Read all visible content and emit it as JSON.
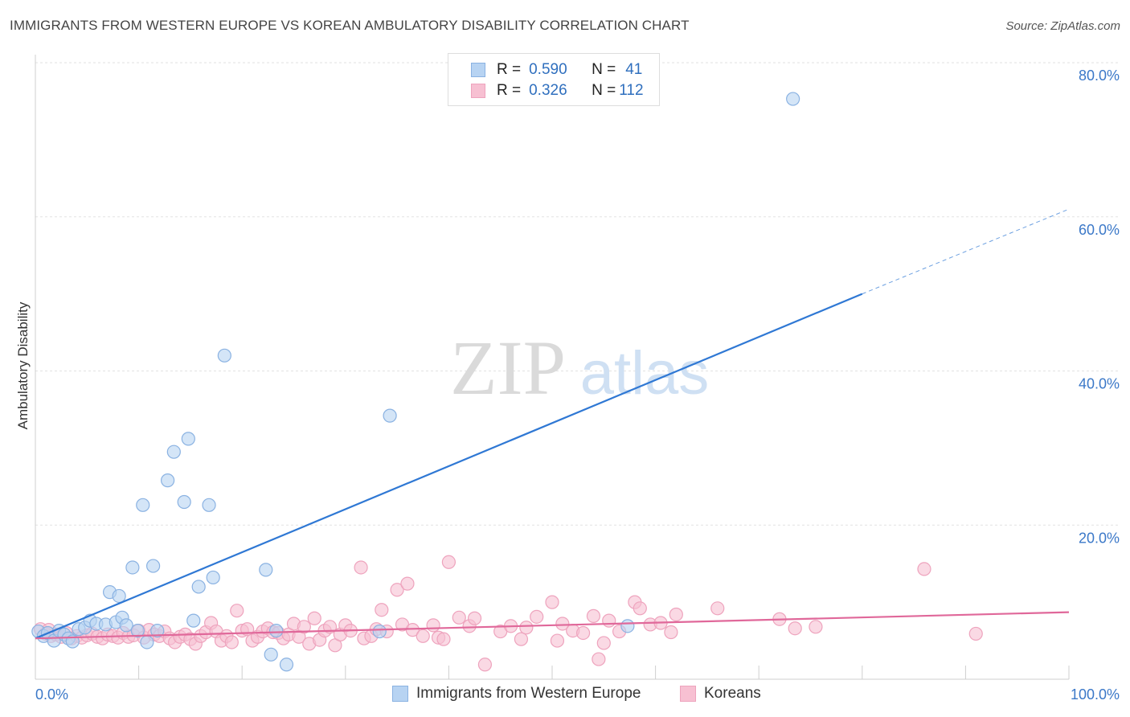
{
  "title": "IMMIGRANTS FROM WESTERN EUROPE VS KOREAN AMBULATORY DISABILITY CORRELATION CHART",
  "source": "Source: ZipAtlas.com",
  "watermark": {
    "zip": "ZIP",
    "atlas": "atlas"
  },
  "legend": {
    "rows": [
      {
        "r_label": "R =",
        "r_value": "0.590",
        "n_label": "N =",
        "n_value": "41"
      },
      {
        "r_label": "R =",
        "r_value": "0.326",
        "n_label": "N =",
        "n_value": "112"
      }
    ]
  },
  "colors": {
    "blue_fill": "#b7d3f2",
    "blue_stroke": "#8ab2e2",
    "blue_line": "#2f78d4",
    "pink_fill": "#f7c0d2",
    "pink_stroke": "#eea3bd",
    "pink_line": "#e0689a",
    "axis_label": "#3b78c8",
    "grid": "#e2e2e2"
  },
  "chart_data": {
    "type": "scatter",
    "title": "IMMIGRANTS FROM WESTERN EUROPE VS KOREAN AMBULATORY DISABILITY CORRELATION CHART",
    "xlabel": "",
    "ylabel": "Ambulatory Disability",
    "xlim": [
      0,
      100
    ],
    "ylim": [
      0,
      80
    ],
    "x_tick_labels": [
      "0.0%",
      "100.0%"
    ],
    "y_ticks": [
      20,
      40,
      60,
      80
    ],
    "y_tick_labels": [
      "20.0%",
      "40.0%",
      "60.0%",
      "80.0%"
    ],
    "grid": true,
    "series": [
      {
        "name": "Immigrants from Western Europe",
        "color": "blue",
        "R": 0.59,
        "N": 41,
        "trend": {
          "x0": 0,
          "y0": 5.3,
          "x1": 80,
          "y1": 50.0,
          "dash_to_x": 100,
          "dash_to_y": 61.0
        },
        "points": [
          [
            0.3,
            6.2
          ],
          [
            0.8,
            5.6
          ],
          [
            1.2,
            6.0
          ],
          [
            1.8,
            5.0
          ],
          [
            2.3,
            6.3
          ],
          [
            2.8,
            5.8
          ],
          [
            3.2,
            5.3
          ],
          [
            3.6,
            4.9
          ],
          [
            4.2,
            6.5
          ],
          [
            4.8,
            6.7
          ],
          [
            5.3,
            7.6
          ],
          [
            5.9,
            7.2
          ],
          [
            6.8,
            7.1
          ],
          [
            7.2,
            11.3
          ],
          [
            7.8,
            7.4
          ],
          [
            8.1,
            10.8
          ],
          [
            8.4,
            8.0
          ],
          [
            8.8,
            7.0
          ],
          [
            9.4,
            14.5
          ],
          [
            9.9,
            6.3
          ],
          [
            10.4,
            22.6
          ],
          [
            10.8,
            4.8
          ],
          [
            11.4,
            14.7
          ],
          [
            11.8,
            6.3
          ],
          [
            12.8,
            25.8
          ],
          [
            13.4,
            29.5
          ],
          [
            14.4,
            23.0
          ],
          [
            14.8,
            31.2
          ],
          [
            15.3,
            7.6
          ],
          [
            15.8,
            12.0
          ],
          [
            16.8,
            22.6
          ],
          [
            17.2,
            13.2
          ],
          [
            18.3,
            42.0
          ],
          [
            22.3,
            14.2
          ],
          [
            22.8,
            3.2
          ],
          [
            23.3,
            6.3
          ],
          [
            24.3,
            1.9
          ],
          [
            33.3,
            6.2
          ],
          [
            34.3,
            34.2
          ],
          [
            57.3,
            6.9
          ],
          [
            73.3,
            75.3
          ]
        ]
      },
      {
        "name": "Koreans",
        "color": "pink",
        "R": 0.326,
        "N": 112,
        "trend": {
          "x0": 0,
          "y0": 5.3,
          "x1": 100,
          "y1": 8.7
        },
        "points": [
          [
            0.5,
            6.5
          ],
          [
            1.0,
            5.9
          ],
          [
            1.5,
            5.6
          ],
          [
            2.0,
            5.8
          ],
          [
            2.5,
            5.5
          ],
          [
            3.0,
            6.0
          ],
          [
            3.5,
            5.3
          ],
          [
            4.0,
            5.6
          ],
          [
            4.5,
            5.4
          ],
          [
            5.0,
            5.7
          ],
          [
            5.5,
            5.9
          ],
          [
            6.0,
            5.5
          ],
          [
            6.5,
            5.3
          ],
          [
            7.0,
            5.8
          ],
          [
            7.5,
            5.6
          ],
          [
            8.0,
            5.4
          ],
          [
            8.5,
            6.0
          ],
          [
            9.0,
            5.5
          ],
          [
            9.5,
            5.7
          ],
          [
            10.0,
            6.3
          ],
          [
            10.5,
            5.4
          ],
          [
            11.0,
            6.4
          ],
          [
            11.5,
            5.8
          ],
          [
            12.0,
            5.6
          ],
          [
            12.5,
            6.2
          ],
          [
            13.0,
            5.3
          ],
          [
            13.5,
            4.8
          ],
          [
            14.0,
            5.5
          ],
          [
            14.5,
            5.8
          ],
          [
            15.0,
            5.2
          ],
          [
            15.5,
            4.6
          ],
          [
            16.0,
            5.6
          ],
          [
            16.5,
            6.1
          ],
          [
            17.0,
            7.3
          ],
          [
            17.5,
            6.2
          ],
          [
            18.0,
            5.0
          ],
          [
            18.5,
            5.6
          ],
          [
            19.0,
            4.8
          ],
          [
            19.5,
            8.9
          ],
          [
            20.0,
            6.3
          ],
          [
            20.5,
            6.5
          ],
          [
            21.0,
            5.0
          ],
          [
            21.5,
            5.5
          ],
          [
            22.0,
            6.2
          ],
          [
            22.5,
            6.6
          ],
          [
            23.0,
            6.1
          ],
          [
            23.5,
            6.0
          ],
          [
            24.0,
            5.3
          ],
          [
            24.5,
            5.8
          ],
          [
            25.0,
            7.2
          ],
          [
            25.5,
            5.5
          ],
          [
            26.0,
            6.8
          ],
          [
            26.5,
            4.6
          ],
          [
            27.0,
            7.9
          ],
          [
            27.5,
            5.1
          ],
          [
            28.0,
            6.3
          ],
          [
            28.5,
            6.8
          ],
          [
            29.0,
            4.4
          ],
          [
            29.5,
            5.8
          ],
          [
            30.0,
            7.0
          ],
          [
            30.5,
            6.3
          ],
          [
            31.5,
            14.5
          ],
          [
            31.8,
            5.3
          ],
          [
            32.5,
            5.6
          ],
          [
            33.0,
            6.5
          ],
          [
            33.5,
            9.0
          ],
          [
            34.0,
            6.2
          ],
          [
            35.0,
            11.6
          ],
          [
            35.5,
            7.1
          ],
          [
            36.0,
            12.4
          ],
          [
            36.5,
            6.4
          ],
          [
            37.5,
            5.6
          ],
          [
            38.5,
            7.0
          ],
          [
            39.0,
            5.4
          ],
          [
            39.5,
            5.2
          ],
          [
            40.0,
            15.2
          ],
          [
            41.0,
            8.0
          ],
          [
            42.0,
            6.9
          ],
          [
            42.5,
            7.9
          ],
          [
            43.5,
            1.9
          ],
          [
            45.0,
            6.2
          ],
          [
            46.0,
            6.9
          ],
          [
            47.0,
            5.2
          ],
          [
            47.5,
            6.7
          ],
          [
            48.5,
            8.1
          ],
          [
            50.0,
            10.0
          ],
          [
            50.5,
            5.0
          ],
          [
            51.0,
            7.2
          ],
          [
            52.0,
            6.3
          ],
          [
            53.0,
            6.0
          ],
          [
            54.0,
            8.2
          ],
          [
            54.5,
            2.6
          ],
          [
            55.0,
            4.7
          ],
          [
            55.5,
            7.6
          ],
          [
            56.5,
            6.2
          ],
          [
            58.0,
            10.0
          ],
          [
            58.5,
            9.2
          ],
          [
            59.5,
            7.1
          ],
          [
            60.5,
            7.3
          ],
          [
            61.5,
            6.1
          ],
          [
            62.0,
            8.4
          ],
          [
            66.0,
            9.2
          ],
          [
            72.0,
            7.8
          ],
          [
            73.5,
            6.6
          ],
          [
            75.5,
            6.8
          ],
          [
            86.0,
            14.3
          ],
          [
            91.0,
            5.9
          ],
          [
            1.3,
            6.4
          ]
        ]
      }
    ]
  },
  "bottom_legend": {
    "blue_label": "Immigrants from Western Europe",
    "pink_label": "Koreans"
  }
}
